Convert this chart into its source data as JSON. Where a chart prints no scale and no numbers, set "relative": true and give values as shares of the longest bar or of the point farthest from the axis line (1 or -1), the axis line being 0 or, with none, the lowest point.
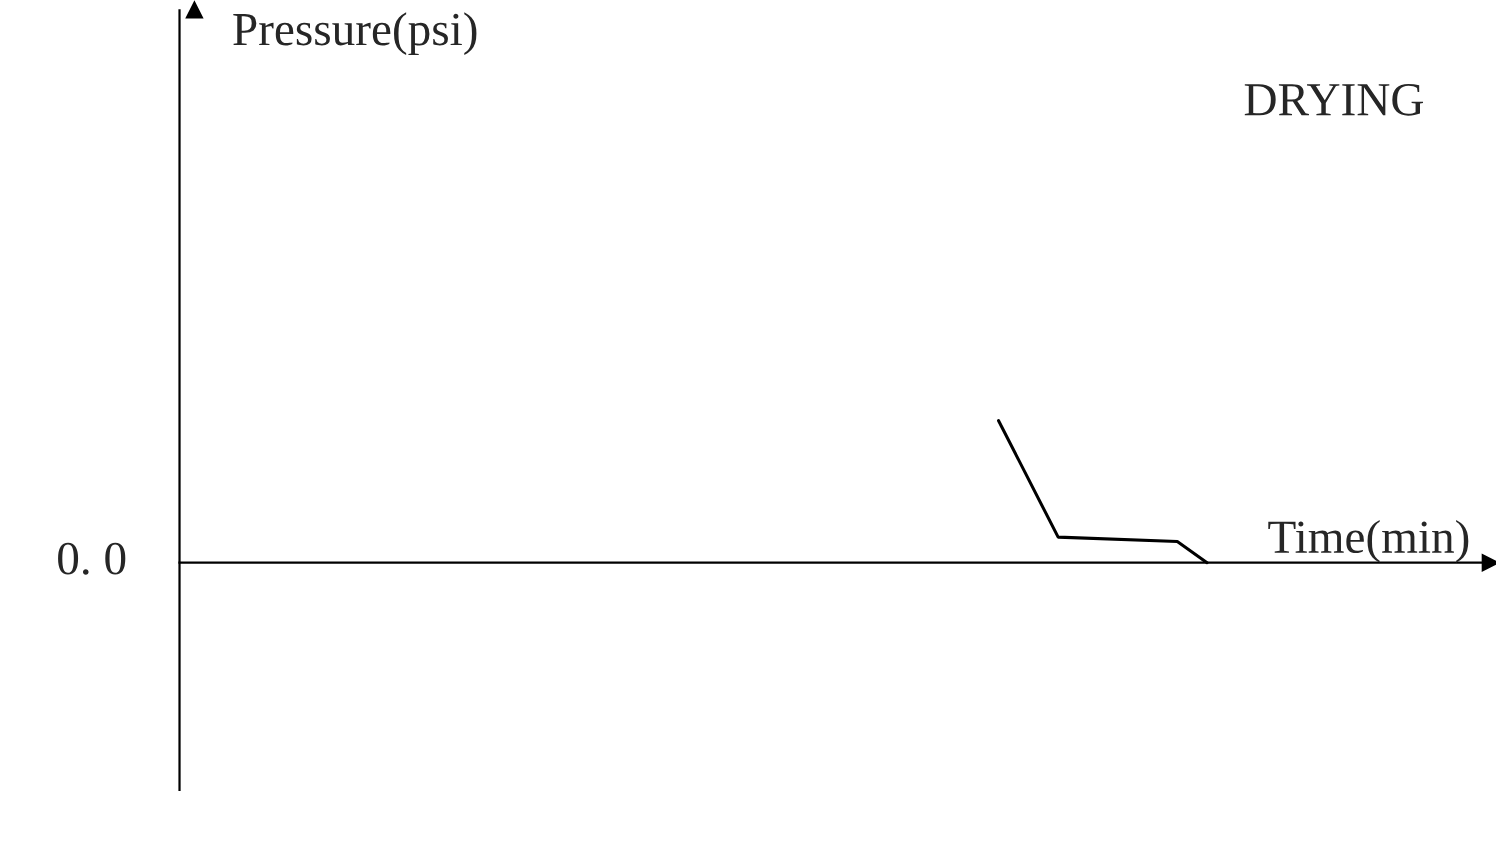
{
  "chart_data": {
    "type": "line",
    "title": "DRYING",
    "xlabel": "Time(min)",
    "relative": true,
    "categories": [
      null,
      null,
      null,
      null,
      null,
      null,
      null,
      null,
      null,
      null,
      null,
      null,
      null,
      null,
      null,
      null,
      null,
      null,
      null,
      null,
      null,
      null,
      null,
      null,
      null,
      null,
      null,
      null,
      null,
      null,
      null,
      null,
      null,
      null,
      null,
      null,
      null,
      null,
      null,
      null,
      null,
      null,
      null,
      null
    ],
    "series": [
      {
        "color": "#000000",
        "values": [
          null,
          null,
          null,
          null,
          null,
          null,
          null,
          null,
          null,
          null,
          null,
          null,
          null,
          null,
          null,
          null,
          null,
          null,
          null,
          null,
          null,
          null,
          null,
          null,
          null,
          null,
          null,
          1,
          null,
          0.18,
          null,
          null,
          null,
          0.15,
          0,
          null,
          null,
          null,
          null,
          null,
          null,
          null,
          null,
          null
        ]
      }
    ],
    "annotations": [
      "0. 0",
      "Pressure(psi)"
    ],
    "legend": false,
    "marker": "none",
    "line_style": "solid"
  }
}
